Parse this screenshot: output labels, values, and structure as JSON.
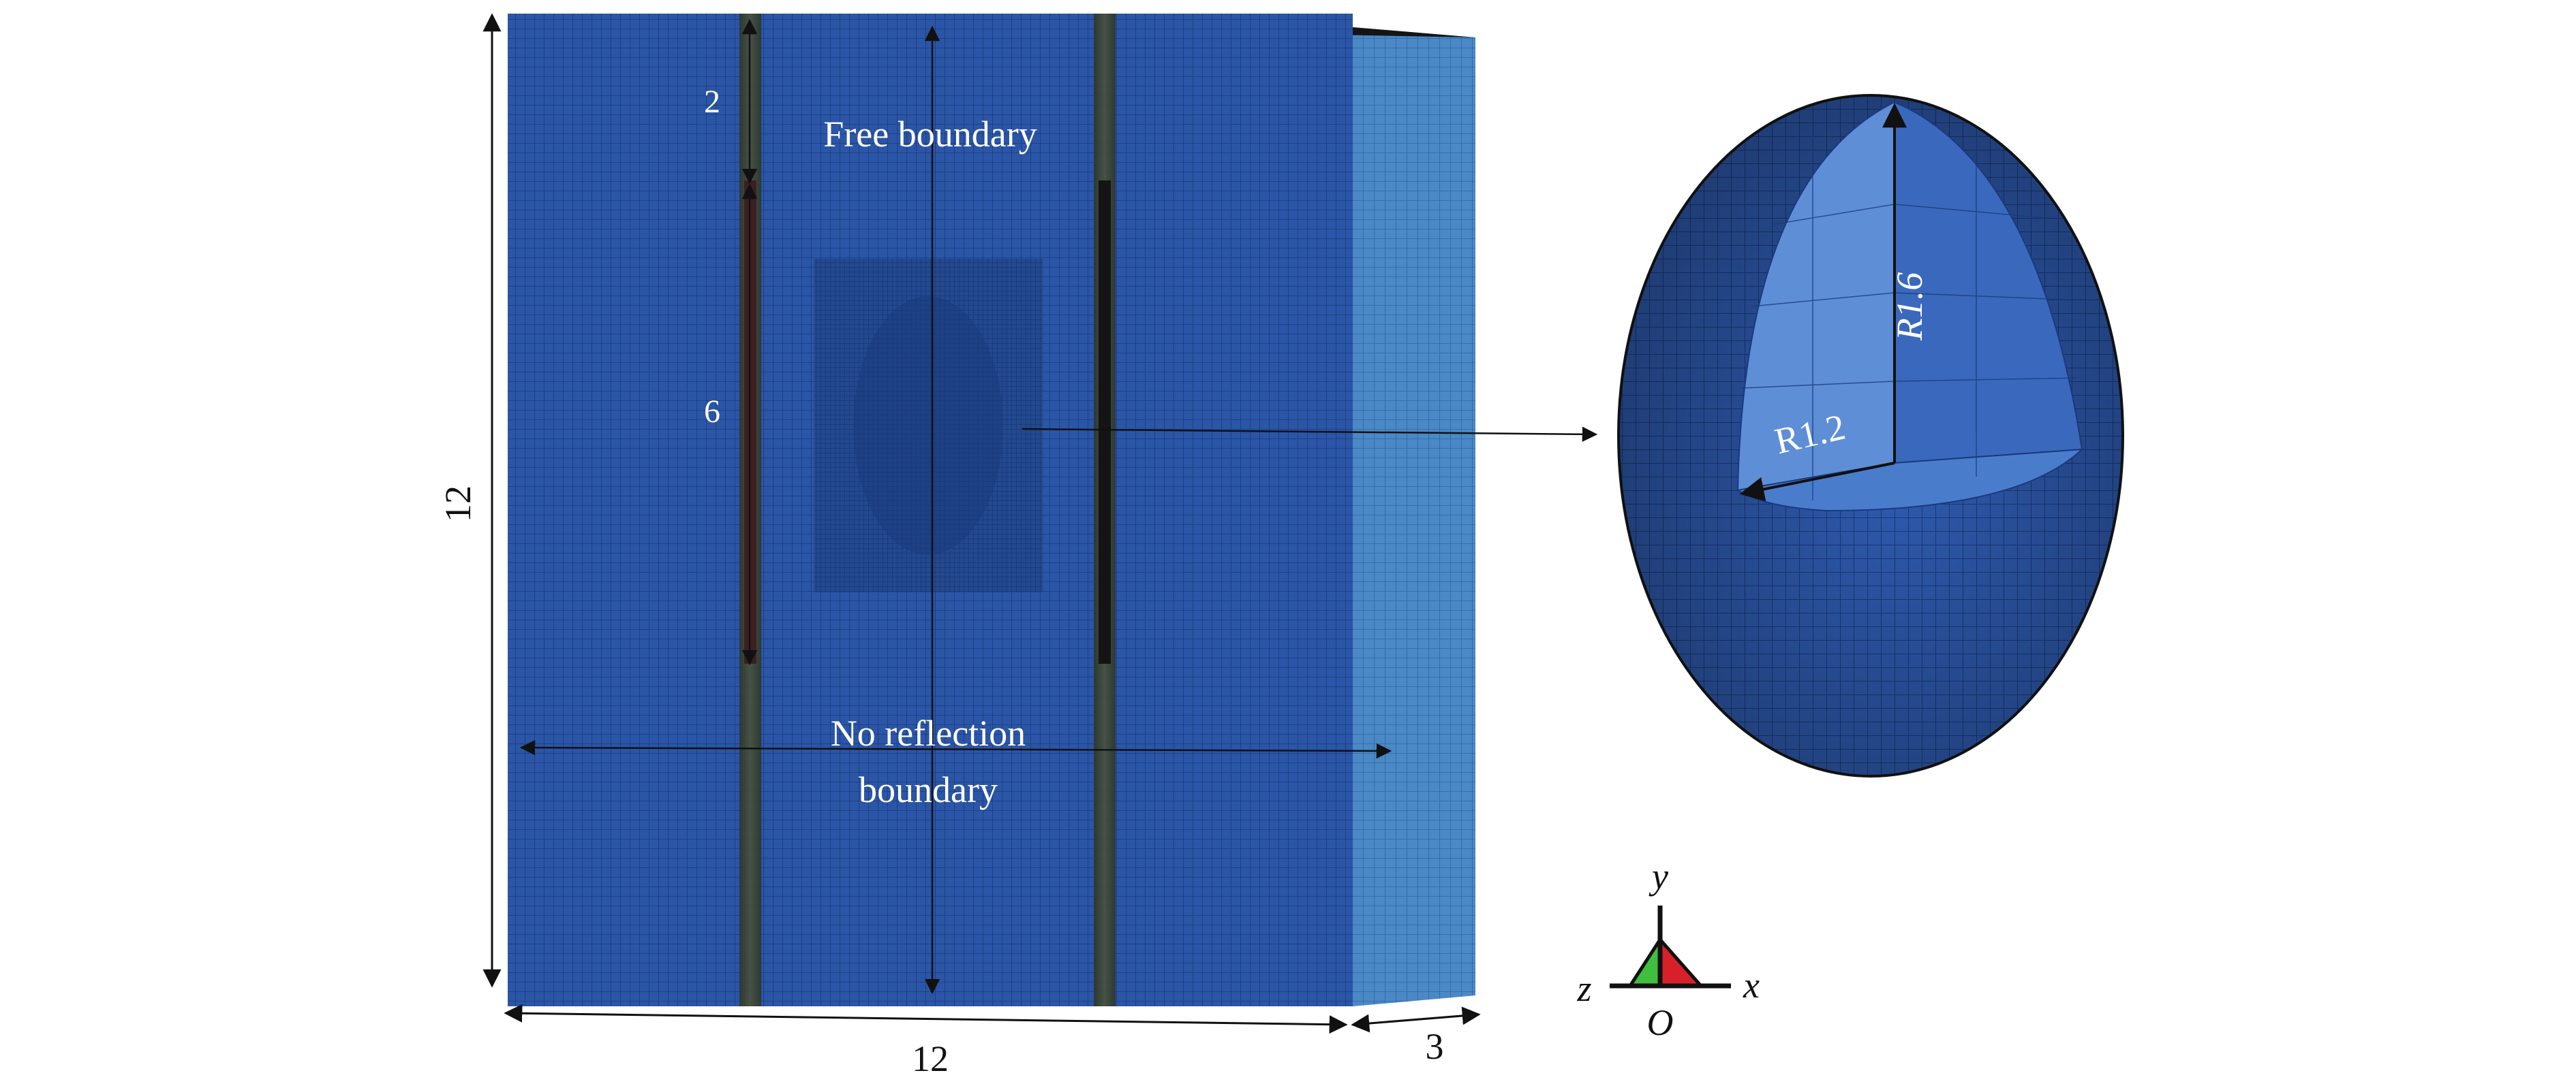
{
  "model": {
    "dim_height": "12",
    "dim_width": "12",
    "dim_depth": "3",
    "dim_top_segment": "2",
    "dim_charge_segment": "6",
    "label_free_boundary": "Free boundary",
    "label_no_reflection_line1": "No reflection",
    "label_no_reflection_line2": "boundary"
  },
  "cavity_detail": {
    "radius_vertical": "R1.6",
    "radius_horizontal": "R1.2"
  },
  "axes_triad": {
    "y": "y",
    "x": "x",
    "z": "z",
    "origin": "O"
  },
  "colors": {
    "mesh_blue": "#2b55a6",
    "mesh_dark": "#1d3f86",
    "side_face": "#4a88c6",
    "borehole": "#3a3f2a",
    "triad_green": "#3fbf3f",
    "triad_red": "#d8202a"
  }
}
